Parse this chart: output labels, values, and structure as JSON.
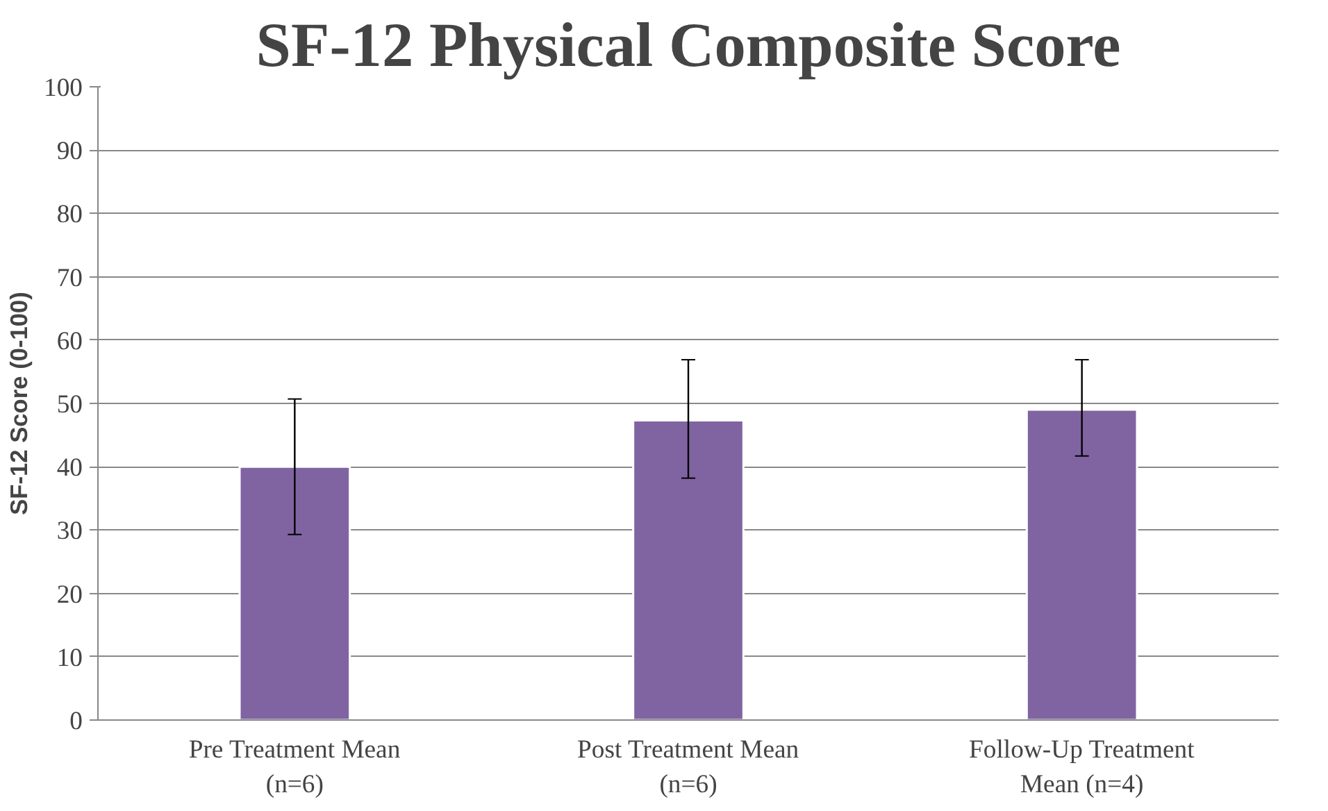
{
  "chart_data": {
    "type": "bar",
    "title": "SF-12 Physical Composite Score",
    "ylabel": "SF-12 Score (0-100)",
    "categories": [
      "Pre Treatment Mean (n=6)",
      "Post Treatment Mean (n=6)",
      "Follow-Up Treatment Mean (n=4)"
    ],
    "values": [
      40,
      47.3,
      49
    ],
    "errors": [
      [
        29.3,
        50.7
      ],
      [
        38.2,
        56.9
      ],
      [
        41.7,
        56.9
      ]
    ],
    "color": "#8064a2",
    "ylim": [
      0,
      100
    ],
    "yticks": [
      0,
      10,
      20,
      30,
      40,
      50,
      60,
      70,
      80,
      90,
      100
    ],
    "grid": "y"
  }
}
